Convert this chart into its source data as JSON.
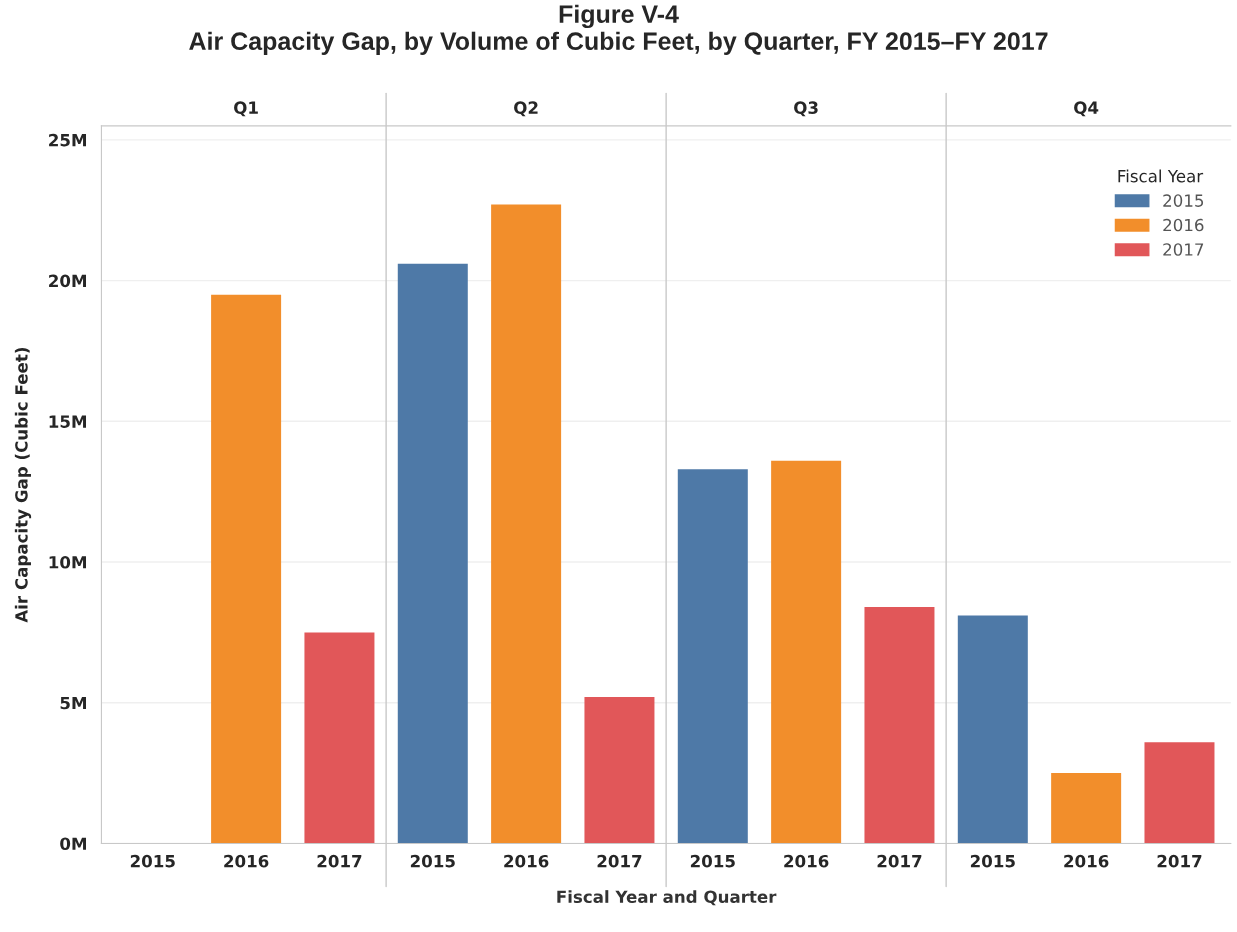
{
  "chart_data": {
    "type": "bar",
    "title": "Figure V-4\nAir Capacity Gap, by Volume of Cubic Feet, by Quarter, FY 2015–FY 2017",
    "xlabel": "Fiscal Year and Quarter",
    "ylabel": "Air Capacity Gap (Cubic Feet)",
    "annotations": [
      "Q1",
      "Q2",
      "Q3",
      "Q4"
    ],
    "categories": [
      "2015",
      "2016",
      "2017",
      "2015",
      "2016",
      "2017",
      "2015",
      "2016",
      "2017",
      "2015",
      "2016",
      "2017"
    ],
    "series": [
      {
        "name": "2015",
        "color": "#4e79a7",
        "values": [
          null,
          null,
          null,
          20600000,
          null,
          null,
          13300000,
          null,
          null,
          8100000,
          null,
          null
        ]
      },
      {
        "name": "2016",
        "color": "#f28e2b",
        "values": [
          null,
          19500000,
          null,
          null,
          22700000,
          null,
          null,
          13600000,
          null,
          null,
          2500000,
          null
        ]
      },
      {
        "name": "2017",
        "color": "#e15759",
        "values": [
          null,
          null,
          7500000,
          null,
          null,
          5200000,
          null,
          null,
          8400000,
          null,
          null,
          3600000
        ]
      }
    ],
    "legend_title": "Fiscal Year",
    "legend": "top right",
    "ylim": [
      0,
      25500000
    ],
    "yticks": [
      {
        "value": 0,
        "label": "0M"
      },
      {
        "value": 5000000,
        "label": "5M"
      },
      {
        "value": 10000000,
        "label": "10M"
      },
      {
        "value": 15000000,
        "label": "15M"
      },
      {
        "value": 20000000,
        "label": "20M"
      },
      {
        "value": 25000000,
        "label": "25M"
      }
    ],
    "grid": "y"
  }
}
